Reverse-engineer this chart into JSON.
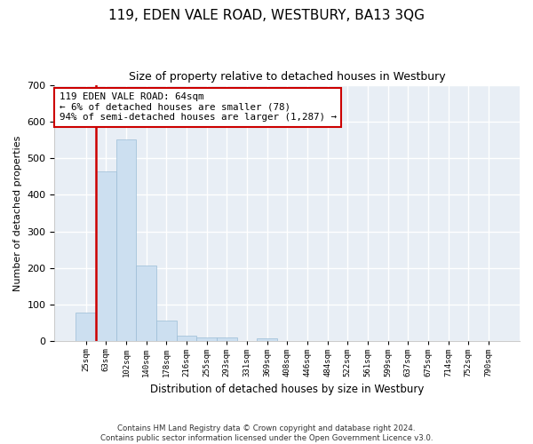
{
  "title": "119, EDEN VALE ROAD, WESTBURY, BA13 3QG",
  "subtitle": "Size of property relative to detached houses in Westbury",
  "xlabel": "Distribution of detached houses by size in Westbury",
  "ylabel": "Number of detached properties",
  "bar_color": "#ccdff0",
  "bar_edge_color": "#9bbdd6",
  "background_color": "#e8eef5",
  "grid_color": "#ffffff",
  "annotation_text": "119 EDEN VALE ROAD: 64sqm\n← 6% of detached houses are smaller (78)\n94% of semi-detached houses are larger (1,287) →",
  "vline_x_idx": 1,
  "vline_color": "#cc0000",
  "box_color": "#cc0000",
  "categories": [
    "25sqm",
    "63sqm",
    "102sqm",
    "140sqm",
    "178sqm",
    "216sqm",
    "255sqm",
    "293sqm",
    "331sqm",
    "369sqm",
    "408sqm",
    "446sqm",
    "484sqm",
    "522sqm",
    "561sqm",
    "599sqm",
    "637sqm",
    "675sqm",
    "714sqm",
    "752sqm",
    "790sqm"
  ],
  "values": [
    78,
    463,
    550,
    206,
    57,
    15,
    10,
    10,
    0,
    8,
    0,
    0,
    0,
    0,
    0,
    0,
    0,
    0,
    0,
    0,
    0
  ],
  "ylim": [
    0,
    700
  ],
  "yticks": [
    0,
    100,
    200,
    300,
    400,
    500,
    600,
    700
  ],
  "footer": "Contains HM Land Registry data © Crown copyright and database right 2024.\nContains public sector information licensed under the Open Government Licence v3.0.",
  "figsize": [
    6.0,
    5.0
  ],
  "dpi": 100
}
